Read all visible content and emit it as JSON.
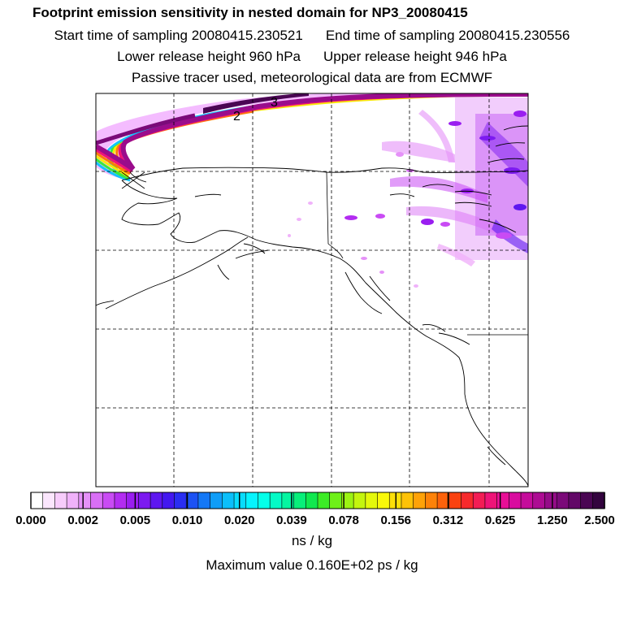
{
  "header": {
    "title": "Footprint emission sensitivity in nested domain for NP3_20080415",
    "start_label": "Start time of sampling 20080415.230521",
    "end_label": "End time of sampling 20080415.230556",
    "lower_label": "Lower release height  960 hPa",
    "upper_label": "Upper release height  946 hPa",
    "source_line": "Passive tracer used, meteorological data are from ECMWF"
  },
  "map": {
    "contour_labels": [
      "2",
      "3"
    ]
  },
  "colorbar": {
    "tick_labels": [
      "0.000",
      "0.002",
      "0.005",
      "0.010",
      "0.020",
      "0.039",
      "0.078",
      "0.156",
      "0.312",
      "0.625",
      "1.250",
      "2.500"
    ],
    "colors": [
      "#ffffff",
      "#fbe6fd",
      "#f7ccfb",
      "#f0b2fa",
      "#e591f8",
      "#d96ff6",
      "#c94bf4",
      "#b32cf1",
      "#9a1ef0",
      "#7c1af0",
      "#5e17f0",
      "#4318f0",
      "#2a2ef2",
      "#1c52f4",
      "#1478f6",
      "#0f9df8",
      "#0bbffa",
      "#08dcfc",
      "#06f4fe",
      "#05ffe9",
      "#05fbc6",
      "#05f5a1",
      "#08ef7a",
      "#10e84f",
      "#3cec26",
      "#6ef018",
      "#9cf312",
      "#c4f50e",
      "#e4f80b",
      "#faf809",
      "#fde008",
      "#fec208",
      "#fea208",
      "#fd8209",
      "#fc620b",
      "#fa4210",
      "#f72a2c",
      "#f31d55",
      "#ee1478",
      "#e80f96",
      "#d90c9f",
      "#c50c9b",
      "#ad0c93",
      "#950c88",
      "#7b0a79",
      "#620867",
      "#4a0653",
      "#33043e"
    ]
  },
  "footer": {
    "units": "ns / kg",
    "max_value": "Maximum value  0.160E+02 ps / kg"
  }
}
